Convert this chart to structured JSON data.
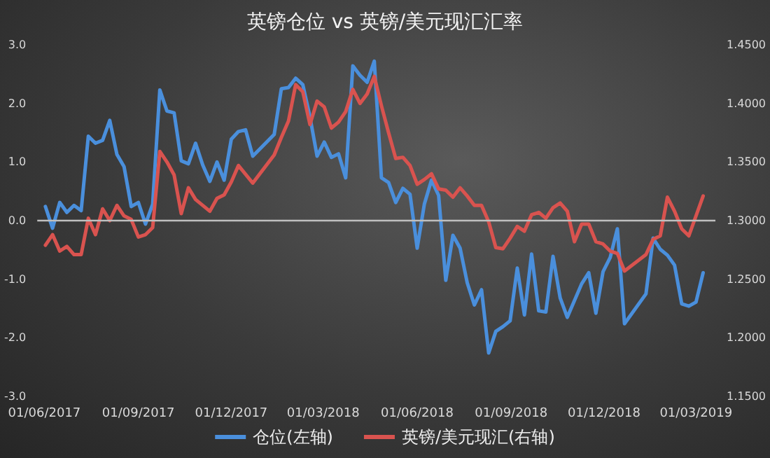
{
  "chart_data": {
    "type": "line",
    "title": "英镑仓位 vs 英镑/美元现汇汇率",
    "xlim": [
      "2017-05-25",
      "2019-03-20"
    ],
    "xticks": [
      {
        "value": "2017-06-01",
        "label": "01/06/2017"
      },
      {
        "value": "2017-09-01",
        "label": "01/09/2017"
      },
      {
        "value": "2017-12-01",
        "label": "01/12/2017"
      },
      {
        "value": "2018-03-01",
        "label": "01/03/2018"
      },
      {
        "value": "2018-06-01",
        "label": "01/06/2018"
      },
      {
        "value": "2018-09-01",
        "label": "01/09/2018"
      },
      {
        "value": "2018-12-01",
        "label": "01/12/2018"
      },
      {
        "value": "2019-03-01",
        "label": "01/03/2019"
      }
    ],
    "ylim": [
      -3,
      3
    ],
    "yticks": [
      {
        "value": -3,
        "label": "-3.0"
      },
      {
        "value": -2,
        "label": "-2.0"
      },
      {
        "value": -1,
        "label": "-1.0"
      },
      {
        "value": 0,
        "label": "0.0"
      },
      {
        "value": 1,
        "label": "1.0"
      },
      {
        "value": 2,
        "label": "2.0"
      },
      {
        "value": 3,
        "label": "3.0"
      }
    ],
    "y2lim": [
      1.15,
      1.45
    ],
    "y2ticks": [
      {
        "value": 1.15,
        "label": "1.1500"
      },
      {
        "value": 1.2,
        "label": "1.2000"
      },
      {
        "value": 1.25,
        "label": "1.2500"
      },
      {
        "value": 1.3,
        "label": "1.3000"
      },
      {
        "value": 1.35,
        "label": "1.3500"
      },
      {
        "value": 1.4,
        "label": "1.4000"
      },
      {
        "value": 1.45,
        "label": "1.4500"
      }
    ],
    "grid": false,
    "legend": "bottom",
    "marker": "none",
    "line_style": "solid",
    "ref_lines": [
      {
        "axis": "y",
        "value": 0,
        "color": "#bfbfbf"
      }
    ],
    "series": [
      {
        "name": "仓位(左轴)",
        "color": "#4a8fdc",
        "x": [
          "2017-06-02",
          "2017-06-09",
          "2017-06-16",
          "2017-06-23",
          "2017-06-30",
          "2017-07-07",
          "2017-07-14",
          "2017-07-21",
          "2017-07-28",
          "2017-08-04",
          "2017-08-11",
          "2017-08-18",
          "2017-08-25",
          "2017-09-01",
          "2017-09-08",
          "2017-09-15",
          "2017-09-22",
          "2017-09-29",
          "2017-10-06",
          "2017-10-13",
          "2017-10-20",
          "2017-10-27",
          "2017-11-03",
          "2017-11-10",
          "2017-11-17",
          "2017-11-24",
          "2017-12-01",
          "2017-12-08",
          "2017-12-15",
          "2017-12-22",
          "2018-01-12",
          "2018-01-19",
          "2018-01-26",
          "2018-02-02",
          "2018-02-09",
          "2018-02-16",
          "2018-02-23",
          "2018-03-02",
          "2018-03-09",
          "2018-03-16",
          "2018-03-23",
          "2018-03-30",
          "2018-04-06",
          "2018-04-13",
          "2018-04-20",
          "2018-04-27",
          "2018-05-04",
          "2018-05-11",
          "2018-05-18",
          "2018-05-25",
          "2018-06-01",
          "2018-06-08",
          "2018-06-15",
          "2018-06-22",
          "2018-06-29",
          "2018-07-06",
          "2018-07-13",
          "2018-07-20",
          "2018-07-27",
          "2018-08-03",
          "2018-08-10",
          "2018-08-17",
          "2018-08-24",
          "2018-08-31",
          "2018-09-07",
          "2018-09-14",
          "2018-09-21",
          "2018-09-28",
          "2018-10-05",
          "2018-10-12",
          "2018-10-19",
          "2018-10-26",
          "2018-11-09",
          "2018-11-16",
          "2018-11-23",
          "2018-11-30",
          "2018-12-07",
          "2018-12-14",
          "2018-12-21",
          "2019-01-11",
          "2019-01-18",
          "2019-01-25",
          "2019-02-01",
          "2019-02-08",
          "2019-02-15",
          "2019-02-22",
          "2019-03-01",
          "2019-03-08"
        ],
        "values": [
          0.24,
          -0.13,
          0.31,
          0.14,
          0.26,
          0.17,
          1.44,
          1.32,
          1.37,
          1.71,
          1.13,
          0.92,
          0.24,
          0.31,
          -0.06,
          0.28,
          2.23,
          1.87,
          1.84,
          1.02,
          0.97,
          1.32,
          0.95,
          0.67,
          1.0,
          0.69,
          1.39,
          1.52,
          1.55,
          1.1,
          1.47,
          2.25,
          2.27,
          2.43,
          2.32,
          1.77,
          1.1,
          1.34,
          1.08,
          1.14,
          0.73,
          2.64,
          2.48,
          2.36,
          2.72,
          0.73,
          0.65,
          0.31,
          0.55,
          0.45,
          -0.47,
          0.28,
          0.69,
          0.43,
          -1.02,
          -0.25,
          -0.47,
          -1.06,
          -1.44,
          -1.18,
          -2.26,
          -1.89,
          -1.81,
          -1.71,
          -0.81,
          -1.61,
          -0.57,
          -1.54,
          -1.56,
          -0.61,
          -1.32,
          -1.65,
          -1.08,
          -0.89,
          -1.58,
          -0.87,
          -0.63,
          -0.14,
          -1.76,
          -1.25,
          -0.3,
          -0.49,
          -0.59,
          -0.76,
          -1.42,
          -1.46,
          -1.39,
          -0.89
        ]
      },
      {
        "name": "英镑/美元现汇(右轴)",
        "color": "#d9534f",
        "axis": "y2",
        "x": [
          "2017-06-02",
          "2017-06-09",
          "2017-06-16",
          "2017-06-23",
          "2017-06-30",
          "2017-07-07",
          "2017-07-14",
          "2017-07-21",
          "2017-07-28",
          "2017-08-04",
          "2017-08-11",
          "2017-08-18",
          "2017-08-25",
          "2017-09-01",
          "2017-09-08",
          "2017-09-15",
          "2017-09-22",
          "2017-09-29",
          "2017-10-06",
          "2017-10-13",
          "2017-10-20",
          "2017-10-27",
          "2017-11-10",
          "2017-11-17",
          "2017-11-24",
          "2017-12-01",
          "2017-12-08",
          "2017-12-22",
          "2018-01-12",
          "2018-01-19",
          "2018-01-26",
          "2018-02-02",
          "2018-02-09",
          "2018-02-16",
          "2018-02-23",
          "2018-03-02",
          "2018-03-09",
          "2018-03-16",
          "2018-03-23",
          "2018-03-30",
          "2018-04-06",
          "2018-04-13",
          "2018-04-20",
          "2018-04-27",
          "2018-05-04",
          "2018-05-11",
          "2018-05-18",
          "2018-05-25",
          "2018-06-01",
          "2018-06-08",
          "2018-06-15",
          "2018-06-22",
          "2018-06-29",
          "2018-07-06",
          "2018-07-13",
          "2018-07-20",
          "2018-07-27",
          "2018-08-03",
          "2018-08-10",
          "2018-08-17",
          "2018-08-24",
          "2018-08-31",
          "2018-09-07",
          "2018-09-14",
          "2018-09-21",
          "2018-09-28",
          "2018-10-05",
          "2018-10-12",
          "2018-10-19",
          "2018-10-26",
          "2018-11-02",
          "2018-11-09",
          "2018-11-16",
          "2018-11-23",
          "2018-11-30",
          "2018-12-07",
          "2018-12-14",
          "2018-12-21",
          "2019-01-11",
          "2019-01-18",
          "2019-01-25",
          "2019-02-01",
          "2019-02-08",
          "2019-02-15",
          "2019-02-22",
          "2019-03-08"
        ],
        "values": [
          1.279,
          1.288,
          1.274,
          1.278,
          1.271,
          1.271,
          1.302,
          1.288,
          1.31,
          1.3,
          1.313,
          1.304,
          1.301,
          1.286,
          1.288,
          1.294,
          1.359,
          1.35,
          1.339,
          1.306,
          1.328,
          1.318,
          1.308,
          1.319,
          1.322,
          1.333,
          1.347,
          1.332,
          1.356,
          1.371,
          1.385,
          1.416,
          1.41,
          1.382,
          1.402,
          1.397,
          1.379,
          1.384,
          1.393,
          1.412,
          1.4,
          1.408,
          1.423,
          1.398,
          1.375,
          1.353,
          1.354,
          1.347,
          1.331,
          1.335,
          1.34,
          1.327,
          1.326,
          1.32,
          1.328,
          1.321,
          1.313,
          1.313,
          1.299,
          1.277,
          1.276,
          1.285,
          1.295,
          1.291,
          1.305,
          1.307,
          1.302,
          1.311,
          1.315,
          1.308,
          1.282,
          1.297,
          1.297,
          1.282,
          1.28,
          1.274,
          1.272,
          1.257,
          1.271,
          1.284,
          1.287,
          1.32,
          1.308,
          1.293,
          1.287,
          1.321
        ]
      }
    ]
  }
}
